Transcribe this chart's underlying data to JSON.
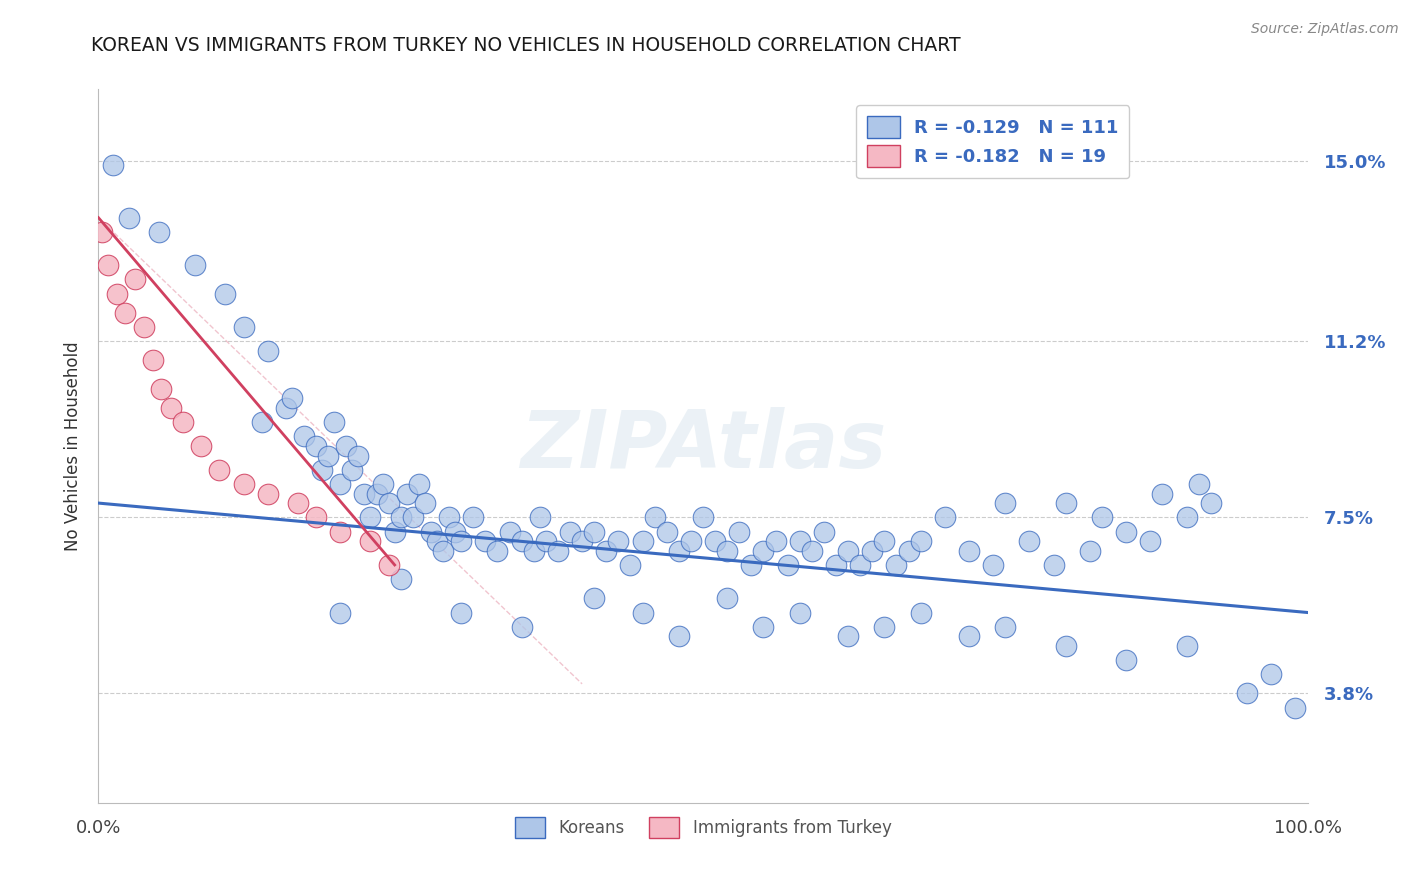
{
  "title": "KOREAN VS IMMIGRANTS FROM TURKEY NO VEHICLES IN HOUSEHOLD CORRELATION CHART",
  "source_text": "Source: ZipAtlas.com",
  "ylabel": "No Vehicles in Household",
  "watermark": "ZIPAtlas",
  "xlim": [
    0.0,
    100.0
  ],
  "ylim": [
    1.5,
    16.5
  ],
  "yticks": [
    3.8,
    7.5,
    11.2,
    15.0
  ],
  "ytick_labels": [
    "3.8%",
    "7.5%",
    "11.2%",
    "15.0%"
  ],
  "legend_korean_R": "-0.129",
  "legend_korean_N": "111",
  "legend_turkey_R": "-0.182",
  "legend_turkey_N": "19",
  "korean_color": "#aec6e8",
  "turkey_color": "#f5b8c4",
  "korean_line_color": "#3a6abf",
  "turkey_line_color": "#d04060",
  "background_color": "#ffffff",
  "title_color": "#1a1a1a",
  "axis_label_color": "#333333",
  "legend_text_color": "#3a6abf",
  "source_color": "#888888",
  "korean_x": [
    1.2,
    2.5,
    5.0,
    8.0,
    10.5,
    12.0,
    13.5,
    14.0,
    15.5,
    16.0,
    17.0,
    18.0,
    18.5,
    19.0,
    19.5,
    20.0,
    20.5,
    21.0,
    21.5,
    22.0,
    22.5,
    23.0,
    23.5,
    24.0,
    24.5,
    25.0,
    25.5,
    26.0,
    26.5,
    27.0,
    27.5,
    28.0,
    28.5,
    29.0,
    29.5,
    30.0,
    31.0,
    32.0,
    33.0,
    34.0,
    35.0,
    36.0,
    36.5,
    37.0,
    38.0,
    39.0,
    40.0,
    41.0,
    42.0,
    43.0,
    44.0,
    45.0,
    46.0,
    47.0,
    48.0,
    49.0,
    50.0,
    51.0,
    52.0,
    53.0,
    54.0,
    55.0,
    56.0,
    57.0,
    58.0,
    59.0,
    60.0,
    61.0,
    62.0,
    63.0,
    64.0,
    65.0,
    66.0,
    67.0,
    68.0,
    70.0,
    72.0,
    74.0,
    75.0,
    77.0,
    79.0,
    80.0,
    82.0,
    83.0,
    85.0,
    87.0,
    88.0,
    90.0,
    91.0,
    92.0,
    30.0,
    35.0,
    41.0,
    45.0,
    48.0,
    52.0,
    55.0,
    58.0,
    62.0,
    65.0,
    68.0,
    72.0,
    75.0,
    80.0,
    85.0,
    90.0,
    95.0,
    97.0,
    99.0,
    20.0,
    25.0
  ],
  "korean_y": [
    14.9,
    13.8,
    13.5,
    12.8,
    12.2,
    11.5,
    9.5,
    11.0,
    9.8,
    10.0,
    9.2,
    9.0,
    8.5,
    8.8,
    9.5,
    8.2,
    9.0,
    8.5,
    8.8,
    8.0,
    7.5,
    8.0,
    8.2,
    7.8,
    7.2,
    7.5,
    8.0,
    7.5,
    8.2,
    7.8,
    7.2,
    7.0,
    6.8,
    7.5,
    7.2,
    7.0,
    7.5,
    7.0,
    6.8,
    7.2,
    7.0,
    6.8,
    7.5,
    7.0,
    6.8,
    7.2,
    7.0,
    7.2,
    6.8,
    7.0,
    6.5,
    7.0,
    7.5,
    7.2,
    6.8,
    7.0,
    7.5,
    7.0,
    6.8,
    7.2,
    6.5,
    6.8,
    7.0,
    6.5,
    7.0,
    6.8,
    7.2,
    6.5,
    6.8,
    6.5,
    6.8,
    7.0,
    6.5,
    6.8,
    7.0,
    7.5,
    6.8,
    6.5,
    7.8,
    7.0,
    6.5,
    7.8,
    6.8,
    7.5,
    7.2,
    7.0,
    8.0,
    7.5,
    8.2,
    7.8,
    5.5,
    5.2,
    5.8,
    5.5,
    5.0,
    5.8,
    5.2,
    5.5,
    5.0,
    5.2,
    5.5,
    5.0,
    5.2,
    4.8,
    4.5,
    4.8,
    3.8,
    4.2,
    3.5,
    5.5,
    6.2
  ],
  "turkey_x": [
    0.3,
    0.8,
    1.5,
    2.2,
    3.0,
    3.8,
    4.5,
    5.2,
    6.0,
    7.0,
    8.5,
    10.0,
    12.0,
    14.0,
    16.5,
    18.0,
    20.0,
    22.5,
    24.0
  ],
  "turkey_y": [
    13.5,
    12.8,
    12.2,
    11.8,
    12.5,
    11.5,
    10.8,
    10.2,
    9.8,
    9.5,
    9.0,
    8.5,
    8.2,
    8.0,
    7.8,
    7.5,
    7.2,
    7.0,
    6.5
  ],
  "korean_trend_x": [
    0.0,
    100.0
  ],
  "korean_trend_y": [
    7.8,
    5.5
  ],
  "turkey_trend_x": [
    0.0,
    24.5
  ],
  "turkey_trend_y": [
    13.8,
    6.5
  ]
}
